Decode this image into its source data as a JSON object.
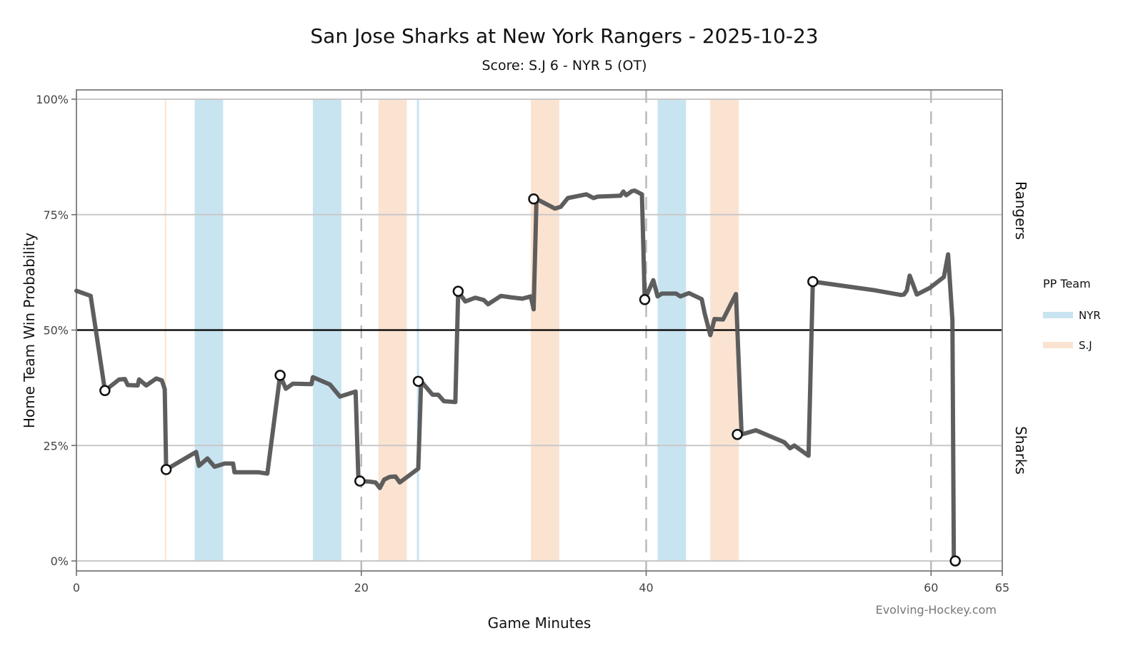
{
  "chart_data": {
    "type": "line",
    "title": "San Jose Sharks at New York Rangers - 2025-10-23",
    "subtitle": "Score: S.J 6 - NYR 5 (OT)",
    "xlabel": "Game Minutes",
    "ylabel": "Home Team Win Probability",
    "xlim": [
      0,
      65
    ],
    "ylim": [
      0,
      100
    ],
    "x_ticks": [
      0,
      20,
      40,
      60,
      65
    ],
    "x_tick_labels": [
      "0",
      "20",
      "40",
      "60",
      "65"
    ],
    "y_ticks": [
      0,
      25,
      50,
      75,
      100
    ],
    "y_tick_labels": [
      "0%",
      "25%",
      "50%",
      "75%",
      "100%"
    ],
    "period_lines": [
      20,
      40,
      60
    ],
    "reference_line": 50,
    "grid": true,
    "side_labels": {
      "top": "Rangers",
      "bottom": "Sharks"
    },
    "legend": {
      "title": "PP Team",
      "position": "right",
      "entries": [
        {
          "name": "NYR",
          "color": "#c9e4f1"
        },
        {
          "name": "S.J",
          "color": "#fbe3d1"
        }
      ]
    },
    "power_plays": [
      {
        "team": "S.J",
        "start": 6.2,
        "end": 6.3,
        "color": "#fbe3d1"
      },
      {
        "team": "NYR",
        "start": 8.3,
        "end": 10.3,
        "color": "#c9e4f1"
      },
      {
        "team": "NYR",
        "start": 16.6,
        "end": 18.6,
        "color": "#c9e4f1"
      },
      {
        "team": "S.J",
        "start": 21.2,
        "end": 23.2,
        "color": "#fbe3d1"
      },
      {
        "team": "NYR",
        "start": 23.9,
        "end": 24.05,
        "color": "#c9e4f1"
      },
      {
        "team": "S.J",
        "start": 31.9,
        "end": 33.9,
        "color": "#fbe3d1"
      },
      {
        "team": "NYR",
        "start": 40.8,
        "end": 42.8,
        "color": "#c9e4f1"
      },
      {
        "team": "S.J",
        "start": 44.5,
        "end": 46.5,
        "color": "#fbe3d1"
      },
      {
        "team": "S.J",
        "start": 44.5,
        "end": 46.5,
        "color": "#fbe3d1"
      }
    ],
    "series": [
      {
        "color": "#555555",
        "x": [
          0,
          1,
          2,
          3,
          3.4,
          3.6,
          4.3,
          4.4,
          4.9,
          5.6,
          6.0,
          6.2,
          6.3,
          8.4,
          8.6,
          9.2,
          9.7,
          10.4,
          11.0,
          11.1,
          12.8,
          13.4,
          14.3,
          14.7,
          15.2,
          16.5,
          16.6,
          17.8,
          18.5,
          19.6,
          19.8,
          20.5,
          21.0,
          21.3,
          21.6,
          22.0,
          22.4,
          22.7,
          24.0,
          24.2,
          25.0,
          25.4,
          25.8,
          26.6,
          26.8,
          27.3,
          28.0,
          28.6,
          28.9,
          29.8,
          30.5,
          31.3,
          31.9,
          32.1,
          32.3,
          33.6,
          34.0,
          34.5,
          35.8,
          36.3,
          36.6,
          38.2,
          38.4,
          38.6,
          39.0,
          39.2,
          39.7,
          39.9,
          40.5,
          40.8,
          41.1,
          42.1,
          42.4,
          43.0,
          43.9,
          44.1,
          44.5,
          44.8,
          45.4,
          46.3,
          46.7,
          47.7,
          49.7,
          50.1,
          50.4,
          51.4,
          51.7,
          56.1,
          57.9,
          58.1,
          58.3,
          58.5,
          59.0,
          59.9,
          60.9,
          61.2,
          61.5,
          61.6,
          61.8
        ],
        "y": [
          58.5,
          57.4,
          36.9,
          39.3,
          39.4,
          38.1,
          38.0,
          39.3,
          38.0,
          39.5,
          39.1,
          37.2,
          19.8,
          23.6,
          20.6,
          22.2,
          20.4,
          21.1,
          21.1,
          19.2,
          19.2,
          18.9,
          40.2,
          37.3,
          38.4,
          38.3,
          39.8,
          38.2,
          35.6,
          36.7,
          17.3,
          17.2,
          17.0,
          15.8,
          17.6,
          18.2,
          18.3,
          17.0,
          20.0,
          38.9,
          36.0,
          36.0,
          34.6,
          34.4,
          58.4,
          56.2,
          57.0,
          56.5,
          55.6,
          57.4,
          57.1,
          56.8,
          57.3,
          54.5,
          78.4,
          76.3,
          76.7,
          78.6,
          79.4,
          78.6,
          78.9,
          79.1,
          80.0,
          79.2,
          80.1,
          80.2,
          79.4,
          56.6,
          60.8,
          57.3,
          57.9,
          57.9,
          57.3,
          58.0,
          56.7,
          53.7,
          48.9,
          52.4,
          52.3,
          57.8,
          27.4,
          28.3,
          25.7,
          24.4,
          25.0,
          22.8,
          60.5,
          58.6,
          57.6,
          57.7,
          58.6,
          61.8,
          57.7,
          59.1,
          61.5,
          66.4,
          52.2,
          0.1,
          0.0
        ]
      }
    ],
    "goal_markers": [
      {
        "x": 2.0,
        "y": 36.9
      },
      {
        "x": 6.3,
        "y": 19.8
      },
      {
        "x": 14.3,
        "y": 40.2
      },
      {
        "x": 19.9,
        "y": 17.3
      },
      {
        "x": 24.0,
        "y": 38.9
      },
      {
        "x": 26.8,
        "y": 58.4
      },
      {
        "x": 32.1,
        "y": 78.4
      },
      {
        "x": 39.9,
        "y": 56.6
      },
      {
        "x": 46.4,
        "y": 27.4
      },
      {
        "x": 51.7,
        "y": 60.5
      },
      {
        "x": 61.7,
        "y": 0.0
      }
    ],
    "credit": "Evolving-Hockey.com"
  }
}
